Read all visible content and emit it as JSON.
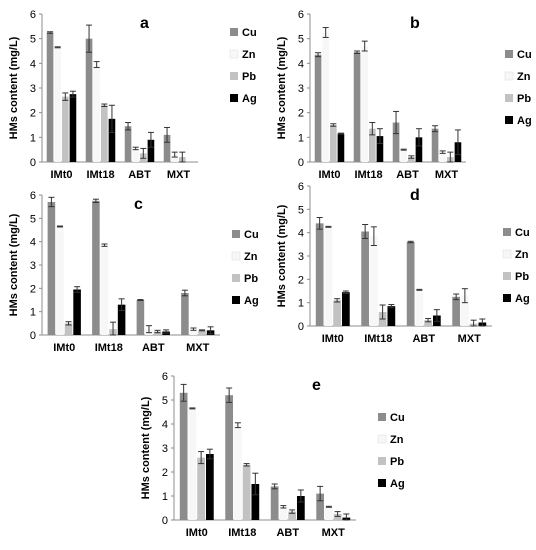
{
  "colors": {
    "Cu": "#8c8c8c",
    "Zn": "#f7f7f7",
    "Pb": "#c2c2c2",
    "Ag": "#000000",
    "axis": "#8c8c8c",
    "text": "#000000"
  },
  "chart_data": [
    {
      "panel_label": "a",
      "type": "bar",
      "categories": [
        "IMt0",
        "IMt18",
        "ABT",
        "MXT"
      ],
      "ylabel": "HMs content (mg/L)",
      "ylim": [
        0,
        6
      ],
      "yticks": [
        0,
        1,
        2,
        3,
        4,
        5,
        6
      ],
      "grid": false,
      "legend_placement": "right",
      "series": [
        {
          "name": "Cu",
          "values": [
            5.25,
            5.0,
            1.45,
            1.1
          ],
          "errors": [
            0.03,
            0.55,
            0.15,
            0.3
          ]
        },
        {
          "name": "Zn",
          "values": [
            4.65,
            3.95,
            0.55,
            0.3
          ],
          "errors": [
            0.02,
            0.12,
            0.05,
            0.1
          ]
        },
        {
          "name": "Pb",
          "values": [
            2.65,
            2.3,
            0.35,
            0.2
          ],
          "errors": [
            0.15,
            0.05,
            0.2,
            0.2
          ]
        },
        {
          "name": "Ag",
          "values": [
            2.75,
            1.75,
            0.9,
            0.0
          ],
          "errors": [
            0.12,
            0.55,
            0.3,
            0.0
          ]
        }
      ]
    },
    {
      "panel_label": "b",
      "type": "bar",
      "categories": [
        "IMt0",
        "IMt18",
        "ABT",
        "MXT"
      ],
      "ylabel": "HMs content (mg/L)",
      "ylim": [
        0,
        6
      ],
      "yticks": [
        0,
        1,
        2,
        3,
        4,
        5,
        6
      ],
      "grid": false,
      "legend_placement": "right",
      "series": [
        {
          "name": "Cu",
          "values": [
            4.35,
            4.45,
            1.6,
            1.35
          ],
          "errors": [
            0.08,
            0.05,
            0.45,
            0.12
          ]
        },
        {
          "name": "Zn",
          "values": [
            5.25,
            4.7,
            0.5,
            0.4
          ],
          "errors": [
            0.2,
            0.2,
            0.02,
            0.05
          ]
        },
        {
          "name": "Pb",
          "values": [
            1.5,
            1.35,
            0.2,
            0.2
          ],
          "errors": [
            0.05,
            0.25,
            0.05,
            0.2
          ]
        },
        {
          "name": "Ag",
          "values": [
            1.15,
            1.05,
            1.0,
            0.8
          ],
          "errors": [
            0.02,
            0.3,
            0.35,
            0.5
          ]
        }
      ]
    },
    {
      "panel_label": "c",
      "type": "bar",
      "categories": [
        "IMt0",
        "IMt18",
        "ABT",
        "MXT"
      ],
      "ylabel": "HMs content (mg/L)",
      "ylim": [
        0,
        6
      ],
      "yticks": [
        0,
        1,
        2,
        3,
        4,
        5,
        6
      ],
      "grid": false,
      "legend_placement": "right",
      "series": [
        {
          "name": "Cu",
          "values": [
            5.7,
            5.75,
            1.5,
            1.8
          ],
          "errors": [
            0.2,
            0.07,
            0.02,
            0.12
          ]
        },
        {
          "name": "Zn",
          "values": [
            4.65,
            3.85,
            0.25,
            0.25
          ],
          "errors": [
            0.02,
            0.05,
            0.15,
            0.05
          ]
        },
        {
          "name": "Pb",
          "values": [
            0.5,
            0.25,
            0.15,
            0.2
          ],
          "errors": [
            0.07,
            0.3,
            0.05,
            0.02
          ]
        },
        {
          "name": "Ag",
          "values": [
            1.95,
            1.3,
            0.15,
            0.2
          ],
          "errors": [
            0.12,
            0.25,
            0.07,
            0.15
          ]
        }
      ]
    },
    {
      "panel_label": "d",
      "type": "bar",
      "categories": [
        "IMt0",
        "IMt18",
        "ABT",
        "MXT"
      ],
      "ylabel": "HMs content (mg/L)",
      "ylim": [
        0,
        6
      ],
      "yticks": [
        0,
        1,
        2,
        3,
        4,
        5,
        6
      ],
      "grid": false,
      "legend_placement": "right",
      "series": [
        {
          "name": "Cu",
          "values": [
            4.4,
            4.05,
            3.6,
            1.25
          ],
          "errors": [
            0.25,
            0.3,
            0.03,
            0.12
          ]
        },
        {
          "name": "Zn",
          "values": [
            4.25,
            3.85,
            1.55,
            1.3
          ],
          "errors": [
            0.02,
            0.4,
            0.02,
            0.3
          ]
        },
        {
          "name": "Pb",
          "values": [
            1.1,
            0.6,
            0.25,
            0.1
          ],
          "errors": [
            0.07,
            0.3,
            0.07,
            0.15
          ]
        },
        {
          "name": "Ag",
          "values": [
            1.45,
            0.85,
            0.45,
            0.15
          ],
          "errors": [
            0.05,
            0.07,
            0.25,
            0.15
          ]
        }
      ]
    },
    {
      "panel_label": "e",
      "type": "bar",
      "categories": [
        "IMt0",
        "IMt18",
        "ABT",
        "MXT"
      ],
      "ylabel": "HMs content (mg/L)",
      "ylim": [
        0,
        6
      ],
      "yticks": [
        0,
        1,
        2,
        3,
        4,
        5,
        6
      ],
      "grid": false,
      "legend_placement": "right",
      "series": [
        {
          "name": "Cu",
          "values": [
            5.3,
            5.2,
            1.4,
            1.1
          ],
          "errors": [
            0.35,
            0.3,
            0.1,
            0.3
          ]
        },
        {
          "name": "Zn",
          "values": [
            4.65,
            3.95,
            0.55,
            0.55
          ],
          "errors": [
            0.02,
            0.1,
            0.05,
            0.02
          ]
        },
        {
          "name": "Pb",
          "values": [
            2.6,
            2.3,
            0.35,
            0.25
          ],
          "errors": [
            0.25,
            0.05,
            0.07,
            0.1
          ]
        },
        {
          "name": "Ag",
          "values": [
            2.75,
            1.5,
            1.0,
            0.1
          ],
          "errors": [
            0.2,
            0.45,
            0.25,
            0.15
          ]
        }
      ]
    }
  ]
}
